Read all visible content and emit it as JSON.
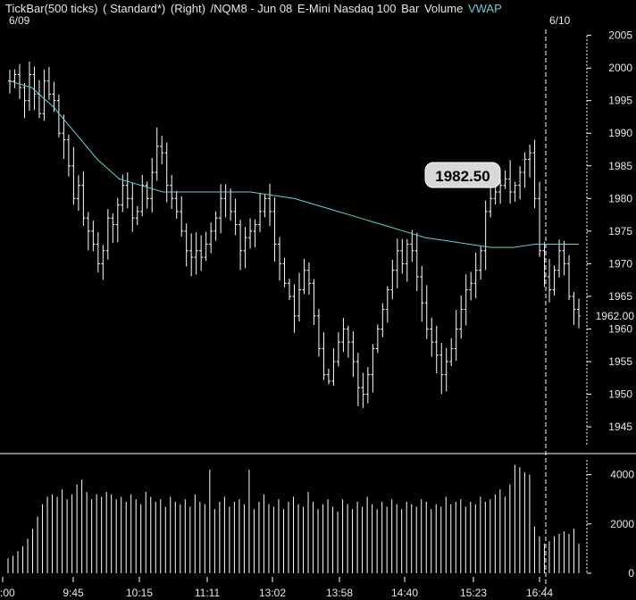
{
  "header": {
    "study": "TickBar(500 ticks)",
    "template": "( Standard*)",
    "scale_side": "(Right)",
    "symbol": "/NQM8 - Jun 08",
    "description": "E-Mini Nasdaq 100",
    "style": "Bar",
    "volume_label": "Volume",
    "vwap_label": "VWAP"
  },
  "colors": {
    "background": "#000000",
    "bars": "#ffffff",
    "vwap": "#5fd4d4",
    "grid": "#ffffff"
  },
  "chart_data": [
    {
      "type": "bar",
      "subtype": "ohlc",
      "date_labels": [
        "6/09",
        "6/10"
      ],
      "xaxis_ticks": [
        ":00",
        "9:45",
        "10:15",
        "11:11",
        "13:02",
        "13:58",
        "14:40",
        "15:23",
        "16:44"
      ],
      "yaxis_ticks": [
        1945,
        1950,
        1955,
        1960,
        1965,
        1970,
        1975,
        1980,
        1985,
        1990,
        1995,
        2000,
        2005
      ],
      "ylim": [
        1942,
        2007
      ],
      "last_price_label": "1962.00",
      "annotation": "1982.50",
      "close_path": [
        1998,
        1999,
        1997,
        1995,
        1999,
        1996,
        1993,
        1998,
        1996,
        1995,
        1990,
        1989,
        1985,
        1980,
        1982,
        1977,
        1975,
        1973,
        1970,
        1972,
        1977,
        1976,
        1979,
        1982,
        1980,
        1977,
        1978,
        1982,
        1980,
        1984,
        1988,
        1987,
        1982,
        1980,
        1978,
        1975,
        1972,
        1971,
        1972,
        1971,
        1973,
        1975,
        1977,
        1980,
        1981,
        1978,
        1976,
        1972,
        1974,
        1975,
        1976,
        1978,
        1980,
        1978,
        1973,
        1970,
        1967,
        1965,
        1962,
        1966,
        1969,
        1967,
        1962,
        1957,
        1953,
        1952,
        1955,
        1958,
        1960,
        1958,
        1955,
        1951,
        1950,
        1953,
        1957,
        1960,
        1963,
        1966,
        1969,
        1972,
        1970,
        1973,
        1972,
        1968,
        1964,
        1960,
        1958,
        1956,
        1953,
        1955,
        1957,
        1960,
        1963,
        1966,
        1967,
        1969,
        1972,
        1978,
        1980,
        1981,
        1982,
        1983,
        1981,
        1982,
        1984,
        1986,
        1987,
        1980,
        1972,
        1968,
        1966,
        1969,
        1972,
        1970,
        1965,
        1963,
        1962
      ],
      "vwap_path": [
        1998,
        1997,
        1994,
        1990,
        1986,
        1983,
        1982,
        1981,
        1981,
        1981,
        1981,
        1981,
        1980.5,
        1980,
        1979,
        1978,
        1977,
        1976,
        1975,
        1974,
        1973.5,
        1973,
        1972.5,
        1972.5,
        1973,
        1973,
        1973
      ],
      "series": [
        {
          "name": "Volume",
          "ylim": [
            0,
            4600
          ],
          "yaxis_ticks": [
            0,
            2000,
            4000
          ],
          "values": [
            600,
            700,
            900,
            1100,
            1400,
            1800,
            2300,
            2800,
            3100,
            3200,
            3100,
            3400,
            3000,
            3200,
            3600,
            3800,
            3300,
            3000,
            3200,
            3100,
            3300,
            3200,
            3000,
            3100,
            2900,
            3200,
            3000,
            2800,
            3300,
            3100,
            2900,
            3000,
            2700,
            3100,
            2900,
            2800,
            3000,
            2700,
            3200,
            2900,
            2800,
            4200,
            2600,
            2900,
            3100,
            2700,
            2900,
            3000,
            2800,
            4200,
            2600,
            2900,
            3200,
            2800,
            2700,
            3000,
            2600,
            2900,
            3100,
            2800,
            2700,
            3300,
            2900,
            2600,
            2800,
            3000,
            2700,
            2500,
            3000,
            2800,
            2600,
            2900,
            2700,
            3100,
            2800,
            2600,
            2900,
            2700,
            3000,
            2800,
            2600,
            2900,
            2800,
            2700,
            3000,
            2900,
            2600,
            2800,
            2700,
            3100,
            2800,
            2900,
            3000,
            2700,
            2900,
            2800,
            3100,
            2900,
            3000,
            3200,
            3400,
            3100,
            3600,
            4400,
            4300,
            4100,
            4000,
            1900,
            1500,
            1200,
            1300,
            1500,
            1600,
            1700,
            1600,
            1800,
            1200
          ]
        }
      ]
    }
  ]
}
